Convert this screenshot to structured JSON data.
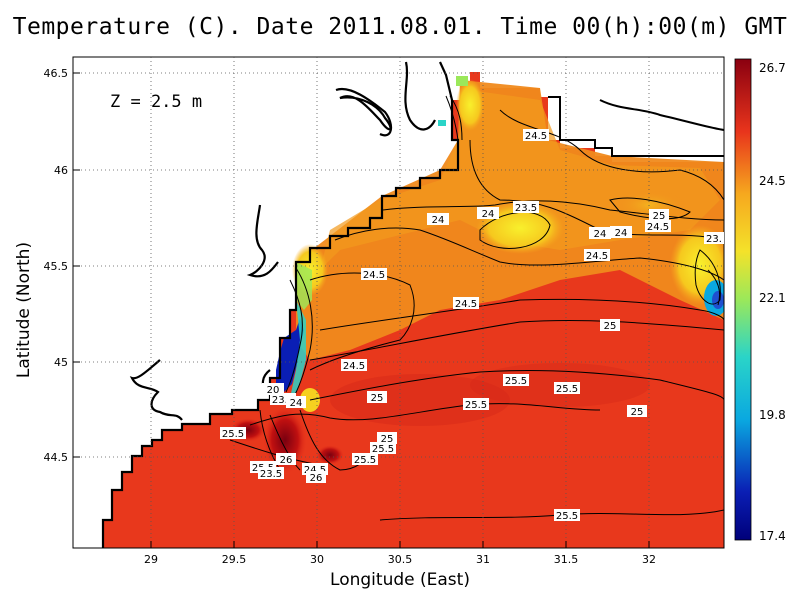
{
  "title": "Temperature (C). Date 2011.08.01. Time 00(h):00(m) GMT",
  "depth_label": "Z = 2.5 m",
  "xlabel": "Longitude (East)",
  "ylabel": "Latitude (North)",
  "x_ticks": [
    "29",
    "29.5",
    "30",
    "30.5",
    "31",
    "31.5",
    "32"
  ],
  "y_ticks": [
    "44.5",
    "45",
    "45.5",
    "46",
    "46.5"
  ],
  "colorbar": {
    "ticks": [
      "26.7",
      "24.5",
      "22.1",
      "19.8",
      "17.4"
    ],
    "min": 17.4,
    "max": 26.7
  },
  "contour_labels": [
    {
      "text": "24.5"
    },
    {
      "text": "23.5"
    },
    {
      "text": "24"
    },
    {
      "text": "24"
    },
    {
      "text": "25"
    },
    {
      "text": "24.5"
    },
    {
      "text": "24"
    },
    {
      "text": "24"
    },
    {
      "text": "23."
    },
    {
      "text": "24.5"
    },
    {
      "text": "24.5"
    },
    {
      "text": "24.5"
    },
    {
      "text": "25"
    },
    {
      "text": "24.5"
    },
    {
      "text": "25"
    },
    {
      "text": "25.5"
    },
    {
      "text": "25.5"
    },
    {
      "text": "25.5"
    },
    {
      "text": "25"
    },
    {
      "text": "25.5"
    },
    {
      "text": "25"
    },
    {
      "text": "25.5"
    },
    {
      "text": "25.5"
    },
    {
      "text": "26"
    },
    {
      "text": "25.5"
    },
    {
      "text": "23.5"
    },
    {
      "text": "24.5"
    },
    {
      "text": "26"
    },
    {
      "text": "23.5"
    },
    {
      "text": "24"
    },
    {
      "text": "20"
    },
    {
      "text": "25.5"
    }
  ],
  "colors": {
    "warm": "#e8341c",
    "orange": "#f08a1c",
    "yellow": "#f4e22a",
    "cold": "#0a1eb4"
  }
}
